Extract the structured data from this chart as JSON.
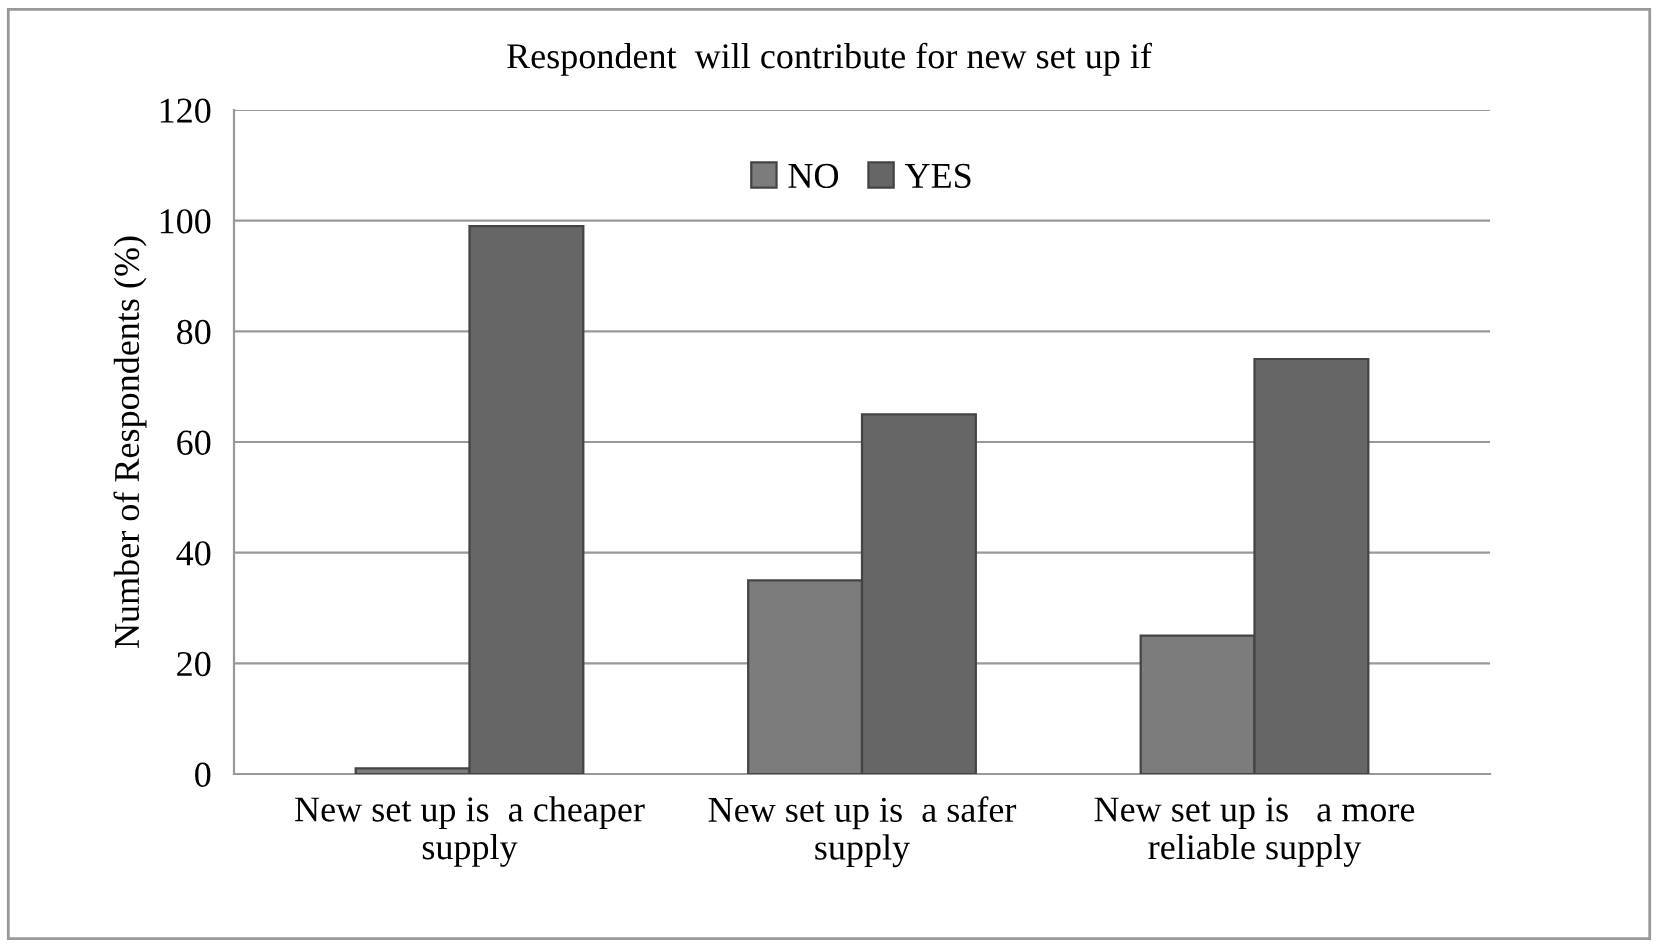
{
  "chart_data": {
    "type": "bar",
    "title": "Respondent  will contribute for new set up if",
    "ylabel": "Number of Respondents (%)",
    "categories": [
      "New set up is  a cheaper\nsupply",
      "New set up is  a safer\nsupply",
      "New set up is   a more\nreliable supply"
    ],
    "series": [
      {
        "name": "NO",
        "color": "#7c7c7c",
        "values": [
          1,
          35,
          25
        ]
      },
      {
        "name": "YES",
        "color": "#666666",
        "values": [
          99,
          65,
          75
        ]
      }
    ],
    "ylim": [
      0,
      120
    ],
    "yticks": [
      0,
      20,
      40,
      60,
      80,
      100,
      120
    ],
    "grid": "y",
    "legend": "top"
  }
}
